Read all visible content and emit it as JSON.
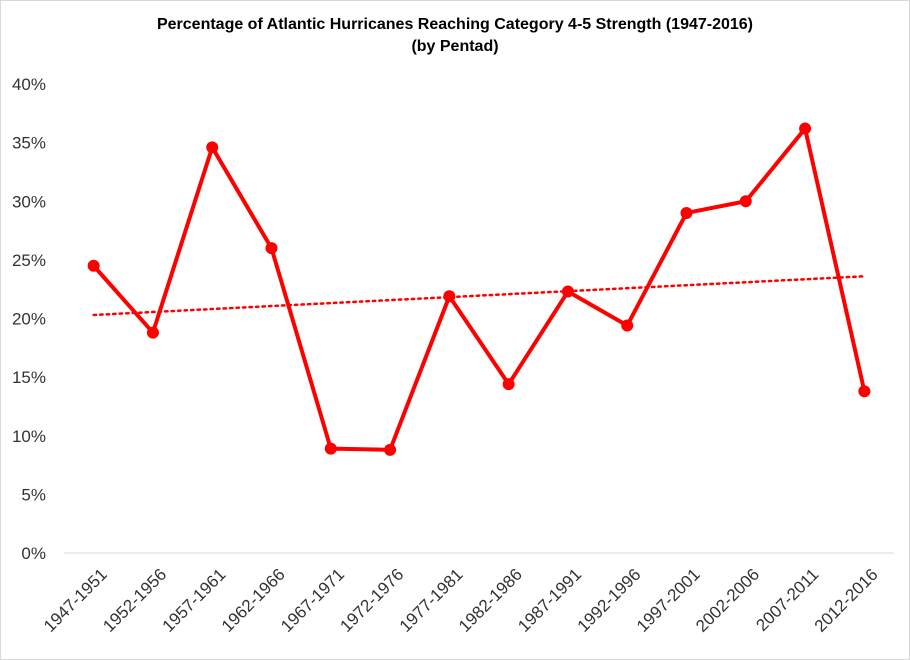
{
  "chart_data": {
    "type": "line",
    "title": "Percentage of Atlantic Hurricanes Reaching Category 4-5 Strength (1947-2016)",
    "subtitle": "(by Pentad)",
    "categories": [
      "1947-1951",
      "1952-1956",
      "1957-1961",
      "1962-1966",
      "1967-1971",
      "1972-1976",
      "1977-1981",
      "1982-1986",
      "1987-1991",
      "1992-1996",
      "1997-2001",
      "2002-2006",
      "2007-2011",
      "2012-2016"
    ],
    "series": [
      {
        "values": [
          24.5,
          18.8,
          34.6,
          26.0,
          8.9,
          8.8,
          21.9,
          14.4,
          22.3,
          19.4,
          29.0,
          30.0,
          36.2,
          13.8
        ],
        "color": "#ff0000",
        "markers": true
      }
    ],
    "trendline": {
      "type": "linear",
      "start": 20.3,
      "end": 23.6,
      "style": "dotted",
      "color": "#ff0000"
    },
    "yticks": [
      "0%",
      "5%",
      "10%",
      "15%",
      "20%",
      "25%",
      "30%",
      "35%",
      "40%"
    ],
    "ylim": [
      0,
      40
    ],
    "xlabel": "",
    "ylabel": "",
    "grid": false,
    "legend": "none"
  }
}
